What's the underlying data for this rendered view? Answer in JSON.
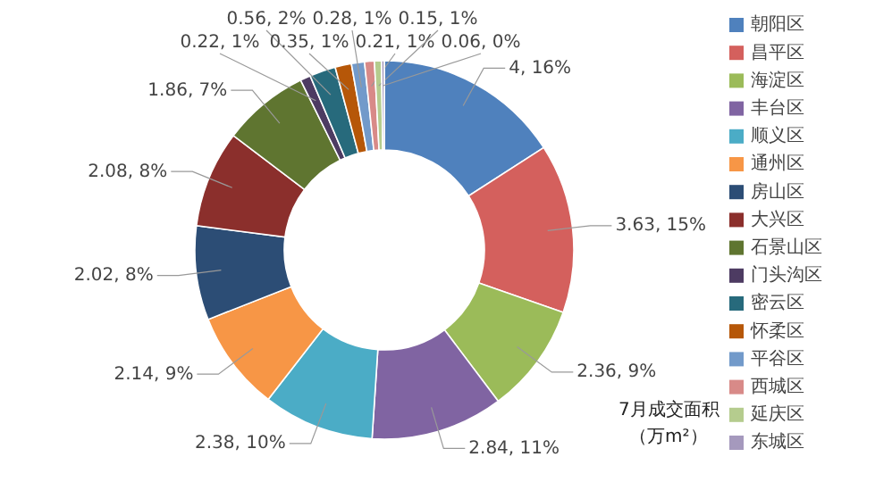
{
  "chart_data": {
    "type": "donut",
    "title": "7月成交面积",
    "subtitle": "（万m²）",
    "categories": [
      "朝阳区",
      "昌平区",
      "海淀区",
      "丰台区",
      "顺义区",
      "通州区",
      "房山区",
      "大兴区",
      "石景山区",
      "门头沟区",
      "密云区",
      "怀柔区",
      "平谷区",
      "西城区",
      "延庆区",
      "东城区"
    ],
    "values": [
      4,
      3.63,
      2.36,
      2.84,
      2.38,
      2.14,
      2.02,
      2.08,
      1.86,
      0.22,
      0.56,
      0.35,
      0.28,
      0.21,
      0.15,
      0.06
    ],
    "value_labels": [
      "4, 16%",
      "3.63, 15%",
      "2.36, 9%",
      "2.84, 11%",
      "2.38, 10%",
      "2.14, 9%",
      "2.02, 8%",
      "2.08, 8%",
      "1.86, 7%",
      "0.22, 1%",
      "0.56, 2%",
      "0.35, 1%",
      "0.28, 1%",
      "0.21, 1%",
      "0.15, 1%",
      "0.06, 0%"
    ],
    "colors": [
      "#4f81bd",
      "#d4605d",
      "#9bbb59",
      "#8064a2",
      "#4bacc6",
      "#f79646",
      "#2c4d75",
      "#8b2f2c",
      "#5f7530",
      "#4d3b62",
      "#276a7c",
      "#b65708",
      "#729aca",
      "#d88a88",
      "#b5cc8e",
      "#a599bd"
    ],
    "legend": "right"
  }
}
